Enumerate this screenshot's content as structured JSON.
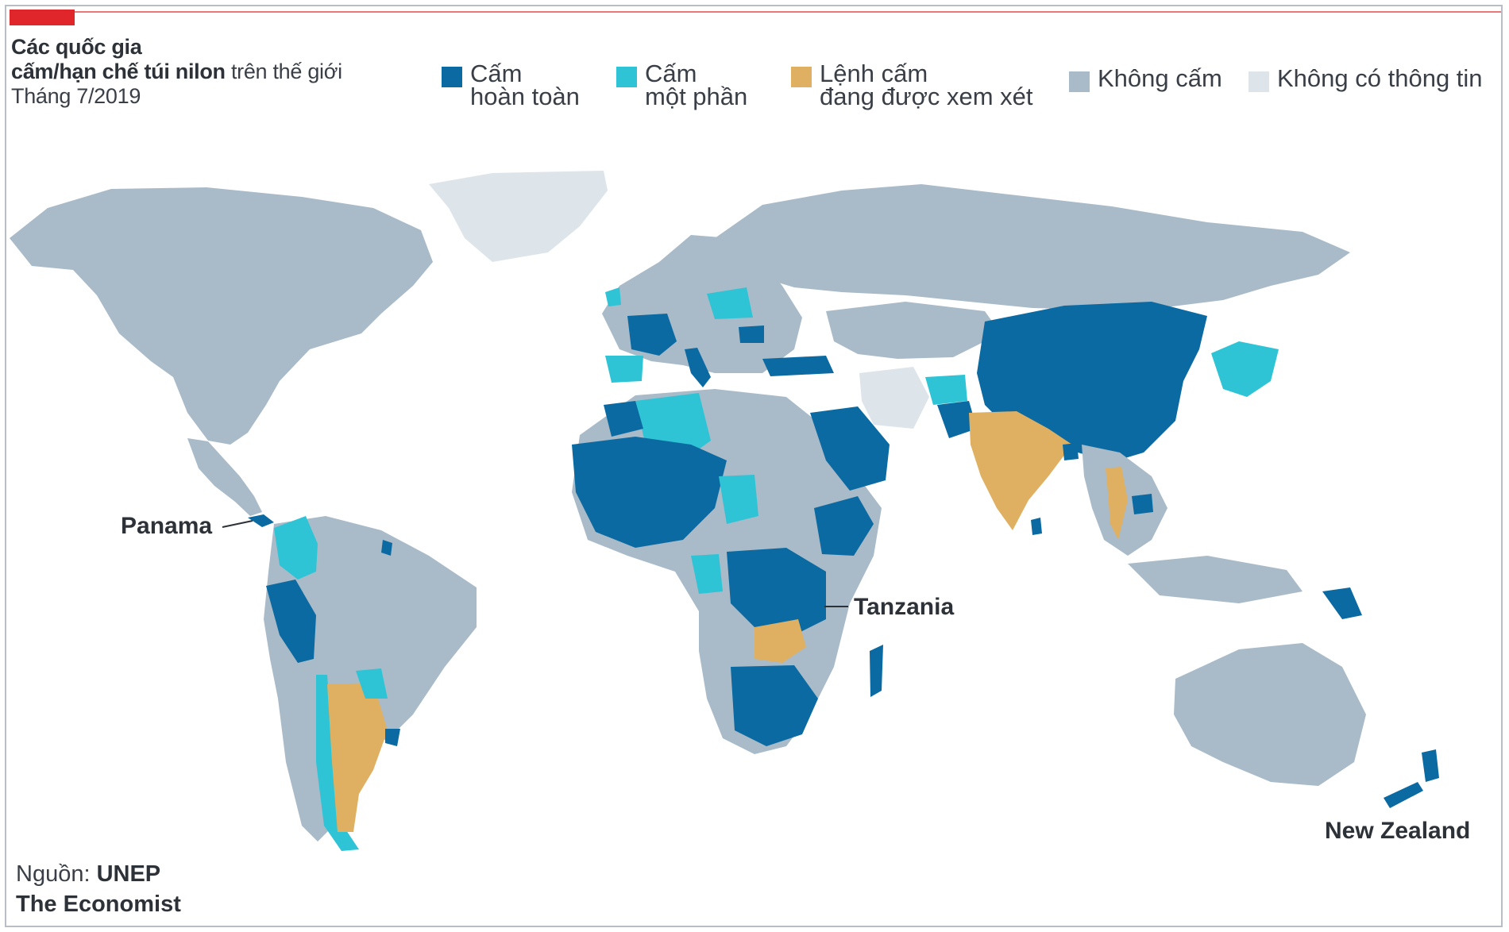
{
  "header": {
    "title_line1": "Các quốc gia",
    "title_line2_bold": "cấm/hạn chế túi nilon",
    "title_line2_rest": " trên thế giới",
    "date": "Tháng 7/2019"
  },
  "legend": [
    {
      "label": "Cấm\nhoàn toàn",
      "color": "#0a6aa1"
    },
    {
      "label": "Cấm\nmột phần",
      "color": "#2ec4d6"
    },
    {
      "label": "Lệnh cấm\nđang được xem xét",
      "color": "#e0b062"
    },
    {
      "label": "Không cấm",
      "color": "#a9bac8"
    },
    {
      "label": "Không có thông tin",
      "color": "#dde4ea"
    }
  ],
  "callouts": {
    "panama": "Panama",
    "tanzania": "Tanzania",
    "new_zealand": "New Zealand"
  },
  "source": {
    "prefix": "Nguồn: ",
    "line1_bold": "UNEP",
    "line2": "The Economist"
  },
  "colors": {
    "full_ban": "#0a6aa1",
    "partial_ban": "#2ec4d6",
    "considering": "#e0b062",
    "no_ban": "#a9bac8",
    "no_info": "#dde4ea",
    "accent": "#e0262b"
  }
}
